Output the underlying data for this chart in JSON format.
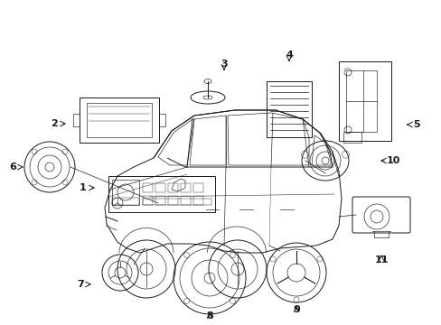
{
  "bg_color": "#ffffff",
  "fig_width": 4.89,
  "fig_height": 3.6,
  "dpi": 100,
  "line_color": "#1a1a1a",
  "lw": 0.7,
  "thin": 0.45
}
